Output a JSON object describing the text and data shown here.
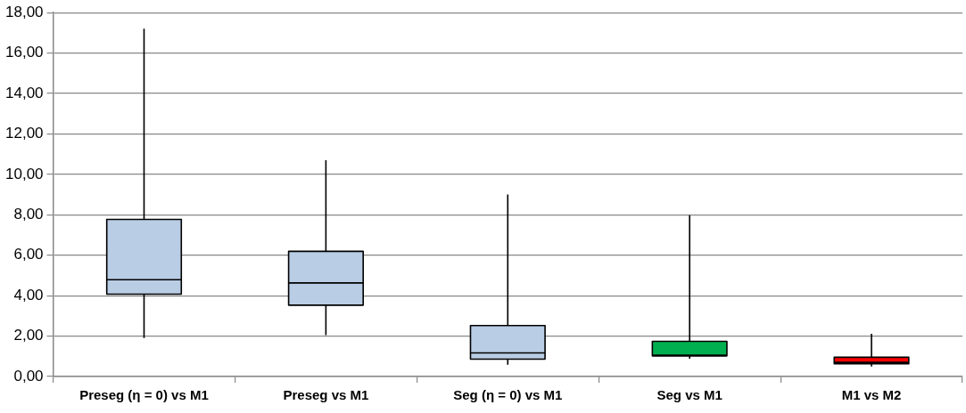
{
  "chart_data": {
    "type": "box",
    "categories": [
      "Preseg (η = 0) vs M1",
      "Preseg vs M1",
      "Seg (η = 0) vs M1",
      "Seg vs M1",
      "M1 vs M2"
    ],
    "boxes": [
      {
        "low": 1.9,
        "q1": 4.07,
        "median": 4.79,
        "q3": 7.77,
        "high": 17.2
      },
      {
        "low": 2.05,
        "q1": 3.53,
        "median": 4.63,
        "q3": 6.19,
        "high": 10.7
      },
      {
        "low": 0.58,
        "q1": 0.86,
        "median": 1.17,
        "q3": 2.52,
        "high": 9.0
      },
      {
        "low": 0.88,
        "q1": 1.02,
        "median": 1.06,
        "q3": 1.74,
        "high": 7.98
      },
      {
        "low": 0.49,
        "q1": 0.63,
        "median": 0.7,
        "q3": 0.95,
        "high": 2.11
      }
    ],
    "colors": [
      "#b9cde5",
      "#b9cde5",
      "#b9cde5",
      "#00b050",
      "#ff0000"
    ],
    "ylim": [
      0,
      18
    ],
    "yticks": [
      {
        "value": 0,
        "label": "0,00"
      },
      {
        "value": 2,
        "label": "2,00"
      },
      {
        "value": 4,
        "label": "4,00"
      },
      {
        "value": 6,
        "label": "6,00"
      },
      {
        "value": 8,
        "label": "8,00"
      },
      {
        "value": 10,
        "label": "10,00"
      },
      {
        "value": 12,
        "label": "12,00"
      },
      {
        "value": 14,
        "label": "14,00"
      },
      {
        "value": 16,
        "label": "16,00"
      },
      {
        "value": 18,
        "label": "18,00"
      }
    ],
    "grid": "y",
    "legend": false
  }
}
